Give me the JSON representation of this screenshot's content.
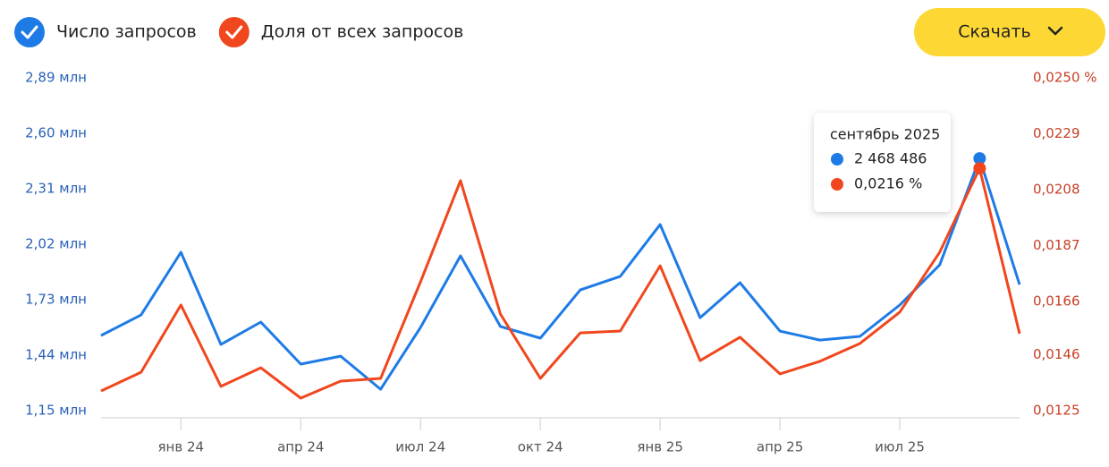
{
  "chart_data": {
    "type": "line",
    "categories": [
      null,
      null,
      "янв 24",
      null,
      null,
      "апр 24",
      null,
      null,
      "июл 24",
      null,
      null,
      "окт 24",
      null,
      null,
      "янв 25",
      null,
      null,
      "апр 25",
      null,
      null,
      "июл 25",
      null,
      null,
      null
    ],
    "series": [
      {
        "name": "Число запросов",
        "color": "#1e7be6",
        "axis": "y",
        "values": [
          1543000,
          1650000,
          1978000,
          1496000,
          1613000,
          1393000,
          1435000,
          1262000,
          1585000,
          1959000,
          1590000,
          1529000,
          1781000,
          1852000,
          2123000,
          1636000,
          1819000,
          1566000,
          1519000,
          1538000,
          1702000,
          1912000,
          2468486,
          1809000
        ]
      },
      {
        "name": "Доля от всех запросов",
        "color": "#f0471e",
        "axis": "y2",
        "values": [
          0.01324,
          0.01394,
          0.01647,
          0.01341,
          0.01411,
          0.01297,
          0.01361,
          0.01371,
          0.01734,
          0.02114,
          0.01613,
          0.01371,
          0.01542,
          0.01549,
          0.01794,
          0.01438,
          0.01526,
          0.01388,
          0.01435,
          0.01502,
          0.0162,
          0.01845,
          0.0216,
          0.01539
        ]
      }
    ],
    "ylim": [
      1150000,
      2890000
    ],
    "yticks": [
      {
        "value": 1150000,
        "label": "1,15 млн"
      },
      {
        "value": 1440000,
        "label": "1,44 млн"
      },
      {
        "value": 1730000,
        "label": "1,73 млн"
      },
      {
        "value": 2020000,
        "label": "2,02 млн"
      },
      {
        "value": 2310000,
        "label": "2,31 млн"
      },
      {
        "value": 2600000,
        "label": "2,60 млн"
      },
      {
        "value": 2890000,
        "label": "2,89 млн"
      }
    ],
    "y2lim": [
      0.0125,
      0.025
    ],
    "y2ticks": [
      {
        "value": 0.0125,
        "label": "0,0125"
      },
      {
        "value": 0.0146,
        "label": "0,0146"
      },
      {
        "value": 0.0166,
        "label": "0,0166"
      },
      {
        "value": 0.0187,
        "label": "0,0187"
      },
      {
        "value": 0.0208,
        "label": "0,0208"
      },
      {
        "value": 0.0229,
        "label": "0,0229"
      },
      {
        "value": 0.025,
        "label": "0,0250 %"
      }
    ],
    "tooltip": {
      "title": "сентябрь 2025",
      "items": [
        {
          "value": 2468486,
          "label": "2 468 486"
        },
        {
          "value": 0.0216,
          "label": "0,0216 %"
        }
      ]
    }
  },
  "toolbar": {
    "download": "Скачать"
  }
}
